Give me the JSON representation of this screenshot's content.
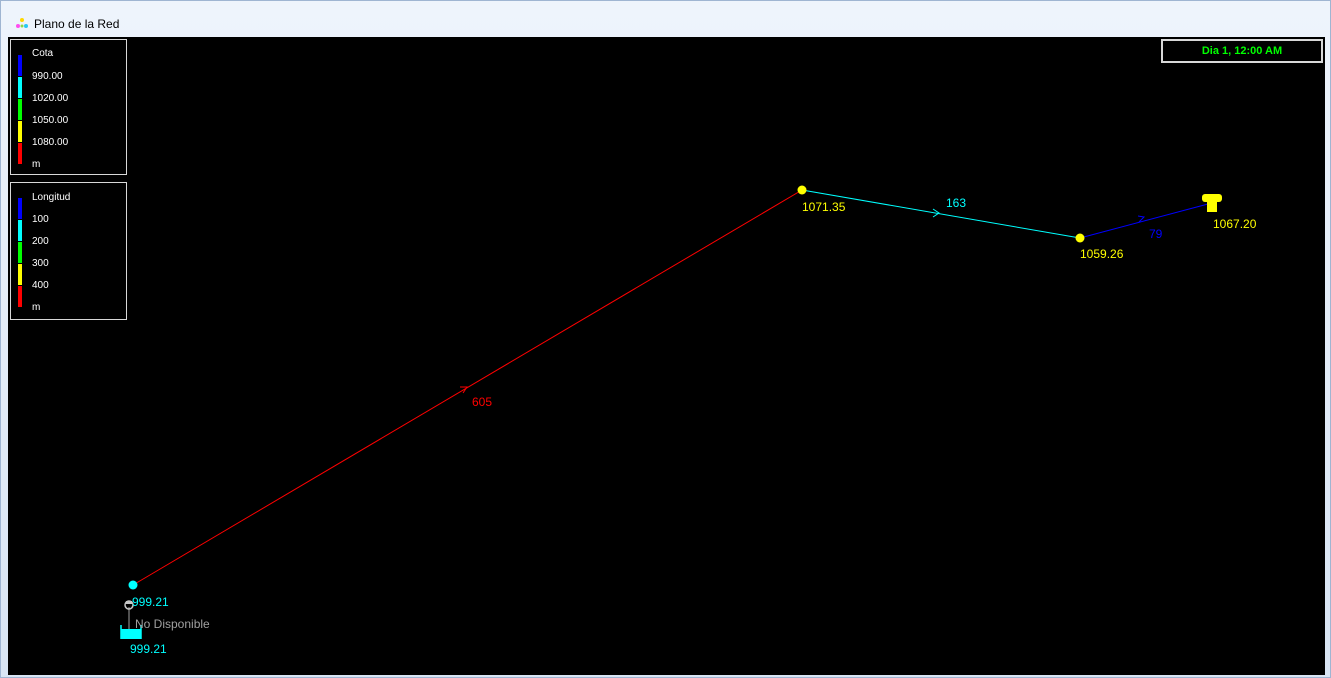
{
  "window": {
    "title": "Plano de la Red"
  },
  "legend_nodes": {
    "title": "Cota",
    "values": [
      "990.00",
      "1020.00",
      "1050.00",
      "1080.00"
    ],
    "unit": "m",
    "colors": [
      "#0000ff",
      "#00ffff",
      "#00ff00",
      "#ffff00",
      "#ff0000"
    ]
  },
  "legend_links": {
    "title": "Longitud",
    "values": [
      "100",
      "200",
      "300",
      "400"
    ],
    "unit": "m",
    "colors": [
      "#0000ff",
      "#00ffff",
      "#00ff00",
      "#ffff00",
      "#ff0000"
    ]
  },
  "time_display": "Dia 1, 12:00 AM",
  "network": {
    "node_labels": {
      "junction_1": "999.21",
      "junction_2": "1071.35",
      "junction_3": "1059.26",
      "tank": "1067.20",
      "reservoir": "999.21"
    },
    "link_labels": {
      "pipe_1": "605",
      "pipe_2": "163",
      "pipe_3": "79"
    },
    "pump_label": "No Disponible",
    "colors": {
      "pipe_1": "#ff0000",
      "pipe_2": "#00ffff",
      "pipe_3": "#0000ff",
      "junction_1": "#00ffff",
      "junction_2": "#ffff00",
      "junction_3": "#ffff00",
      "tank": "#ffff00",
      "reservoir": "#00ffff",
      "pump_label": "#a0a0a0"
    }
  }
}
